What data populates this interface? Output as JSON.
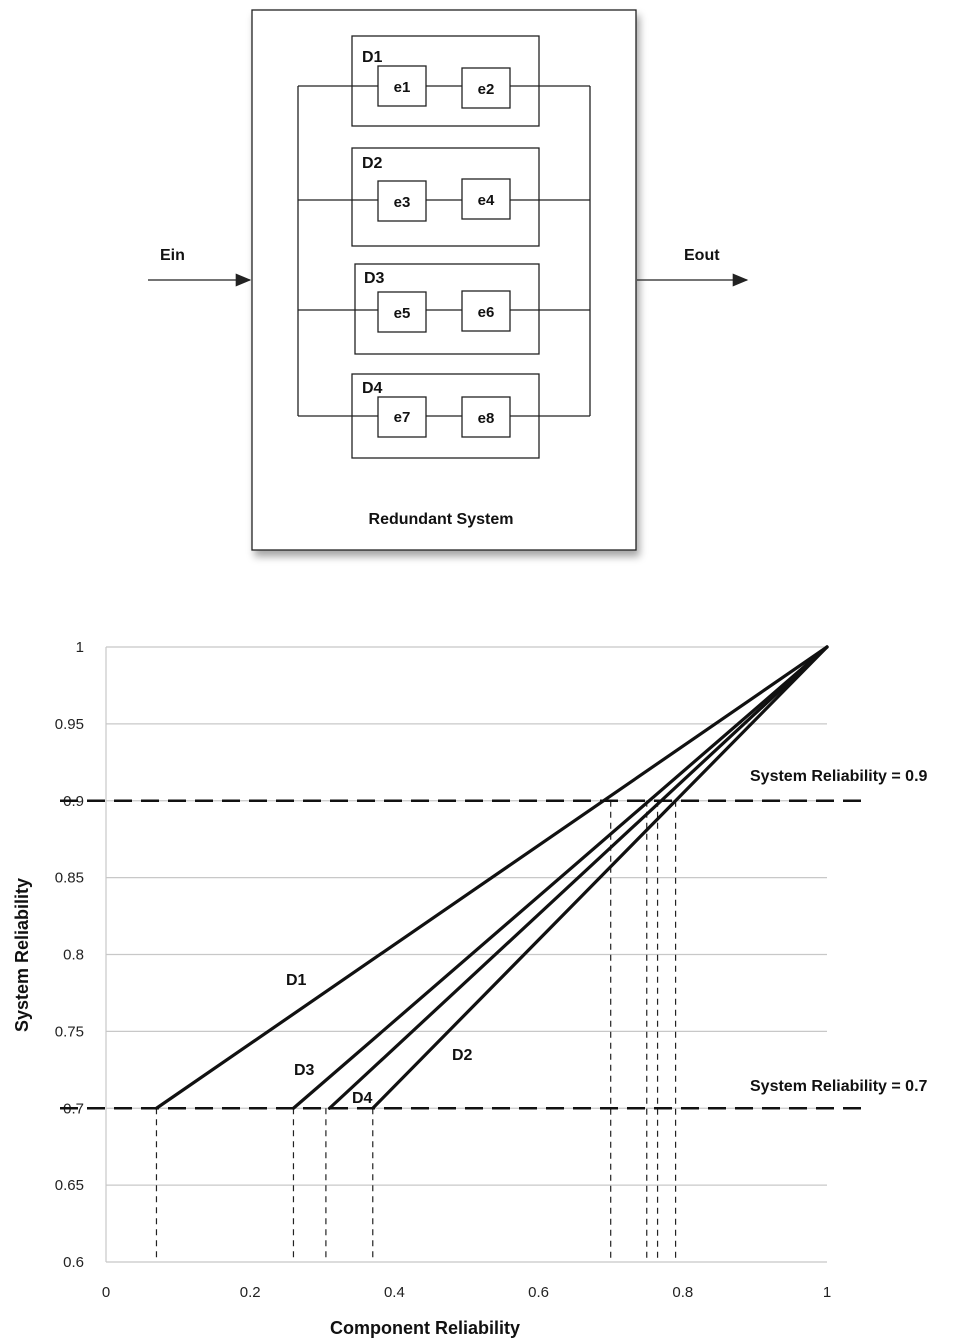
{
  "diagram": {
    "title": "Redundant System",
    "input_label": "Ein",
    "output_label": "Eout",
    "blocks": [
      {
        "name": "D1",
        "elements": [
          "e1",
          "e2"
        ]
      },
      {
        "name": "D2",
        "elements": [
          "e3",
          "e4"
        ]
      },
      {
        "name": "D3",
        "elements": [
          "e5",
          "e6"
        ]
      },
      {
        "name": "D4",
        "elements": [
          "e7",
          "e8"
        ]
      }
    ]
  },
  "chart_data": {
    "type": "line",
    "xlabel": "Component Reliability",
    "ylabel": "System Reliability",
    "xlim": [
      0,
      1
    ],
    "ylim": [
      0.6,
      1
    ],
    "xticks": [
      "0",
      "0.2",
      "0.4",
      "0.6",
      "0.8",
      "1"
    ],
    "yticks": [
      "0.6",
      "0.65",
      "0.7",
      "0.75",
      "0.8",
      "0.85",
      "0.9",
      "0.95",
      "1"
    ],
    "grid": "horizontal",
    "series": [
      {
        "name": "D1",
        "x": [
          0.07,
          1.0
        ],
        "y": [
          0.7,
          1.0
        ]
      },
      {
        "name": "D2",
        "x": [
          0.37,
          1.0
        ],
        "y": [
          0.7,
          1.0
        ]
      },
      {
        "name": "D3",
        "x": [
          0.26,
          1.0
        ],
        "y": [
          0.7,
          1.0
        ]
      },
      {
        "name": "D4",
        "x": [
          0.31,
          1.0
        ],
        "y": [
          0.7,
          1.0
        ]
      }
    ],
    "reference_lines": [
      {
        "label": "System Reliability = 0.9",
        "y": 0.9
      },
      {
        "label": "System Reliability = 0.7",
        "y": 0.7
      }
    ],
    "drop_lines_x": [
      0.07,
      0.26,
      0.305,
      0.37,
      0.7,
      0.75,
      0.765,
      0.79
    ]
  }
}
